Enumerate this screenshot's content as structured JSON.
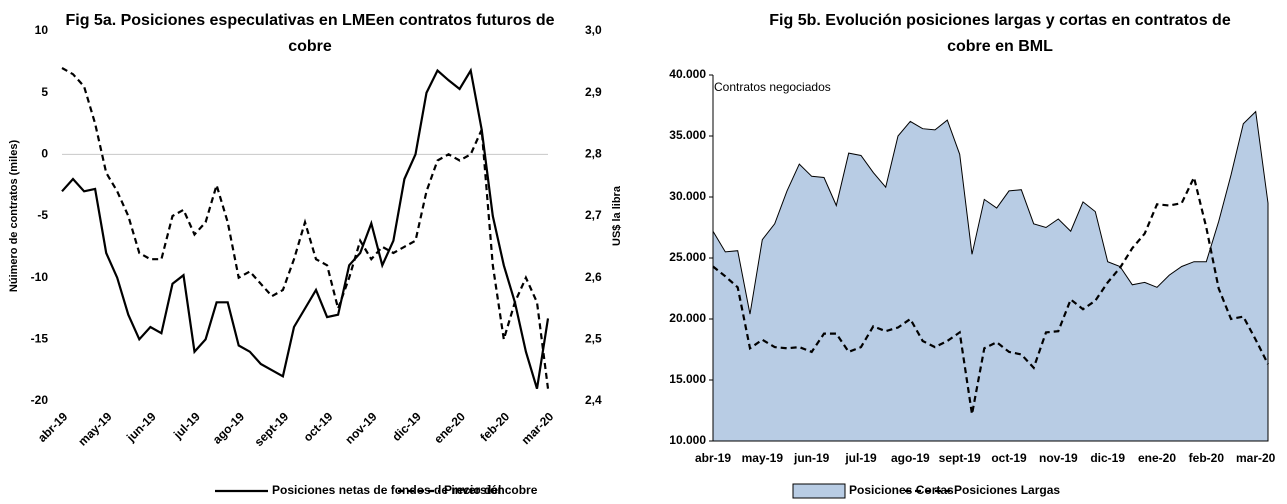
{
  "chart_data": [
    {
      "type": "line",
      "title": "Fig 5a. Posiciones especulativas en LMEen contratos futuros de cobre",
      "y_label": "Núimero de contratos (miles)",
      "y2_label": "US$ la libra",
      "categories": [
        "abr-19",
        null,
        null,
        null,
        "may-19",
        null,
        null,
        null,
        "jun-19",
        null,
        null,
        null,
        "jul-19",
        null,
        null,
        null,
        "ago-19",
        null,
        null,
        null,
        "sept-19",
        null,
        null,
        null,
        "oct-19",
        null,
        null,
        null,
        "nov-19",
        null,
        null,
        null,
        "dic-19",
        null,
        null,
        null,
        "ene-20",
        null,
        null,
        null,
        "feb-20",
        null,
        null,
        null,
        "mar-20"
      ],
      "ylim": [
        -20,
        10
      ],
      "yticks": [
        -20,
        -15,
        -10,
        -5,
        0,
        5,
        10
      ],
      "y2lim": [
        2.4,
        3.0
      ],
      "y2ticks": [
        {
          "value": 2.4,
          "label": "2,4"
        },
        {
          "value": 2.5,
          "label": "2,5"
        },
        {
          "value": 2.6,
          "label": "2,6"
        },
        {
          "value": 2.7,
          "label": "2,7"
        },
        {
          "value": 2.8,
          "label": "2,8"
        },
        {
          "value": 2.9,
          "label": "2,9"
        },
        {
          "value": 3.0,
          "label": "3,0"
        }
      ],
      "series": [
        {
          "name": "Posiciones netas de fondos de inversión",
          "color": "#000000",
          "dashed": false,
          "values": [
            -3,
            -2,
            -3,
            -2.8,
            -8,
            -10,
            -13,
            -15,
            -14,
            -14.5,
            -10.5,
            -9.8,
            -16,
            -15,
            -12,
            -12,
            -15.5,
            -16,
            -17,
            -17.5,
            -18,
            -14,
            -12.5,
            -11,
            -13.2,
            -13,
            -9,
            -8,
            -5.6,
            -9,
            -7,
            -2,
            0,
            5,
            6.8,
            6,
            5.3,
            6.8,
            2,
            -5,
            -9,
            -12,
            -16,
            -19,
            -13.3
          ]
        },
        {
          "name": "Precio del cobre",
          "color": "#000000",
          "dashed": true,
          "axis": "y2",
          "values": [
            2.94,
            2.93,
            2.91,
            2.85,
            2.77,
            2.74,
            2.7,
            2.64,
            2.63,
            2.63,
            2.7,
            2.71,
            2.67,
            2.69,
            2.75,
            2.69,
            2.6,
            2.61,
            2.59,
            2.57,
            2.58,
            2.63,
            2.69,
            2.63,
            2.62,
            2.55,
            2.6,
            2.66,
            2.63,
            2.65,
            2.64,
            2.65,
            2.66,
            2.74,
            2.79,
            2.8,
            2.79,
            2.8,
            2.84,
            2.62,
            2.5,
            2.56,
            2.6,
            2.56,
            2.42
          ]
        }
      ]
    },
    {
      "type": "area",
      "title": "Fig 5b. Evolución posiciones largas y cortas en contratos de cobre en BML",
      "annotation": "Contratos negociados",
      "categories": [
        "abr-19",
        null,
        null,
        null,
        "may-19",
        null,
        null,
        null,
        "jun-19",
        null,
        null,
        null,
        "jul-19",
        null,
        null,
        null,
        "ago-19",
        null,
        null,
        null,
        "sept-19",
        null,
        null,
        null,
        "oct-19",
        null,
        null,
        null,
        "nov-19",
        null,
        null,
        null,
        "dic-19",
        null,
        null,
        null,
        "ene-20",
        null,
        null,
        null,
        "feb-20",
        null,
        null,
        null,
        "mar-20",
        null
      ],
      "ylim": [
        10000,
        40000
      ],
      "yticks": [
        {
          "value": 10000,
          "label": "10.000"
        },
        {
          "value": 15000,
          "label": "15.000"
        },
        {
          "value": 20000,
          "label": "20.000"
        },
        {
          "value": 25000,
          "label": "25.000"
        },
        {
          "value": 30000,
          "label": "30.000"
        },
        {
          "value": 35000,
          "label": "35.000"
        },
        {
          "value": 40000,
          "label": "40.000"
        }
      ],
      "series": [
        {
          "name": "Posiciones Cortas",
          "color": "#b8cce4",
          "mark": "area",
          "values": [
            27200,
            25500,
            25600,
            20400,
            26500,
            27800,
            30500,
            32700,
            31700,
            31600,
            29300,
            33600,
            33400,
            32000,
            30800,
            35000,
            36200,
            35600,
            35500,
            36300,
            33500,
            25300,
            29800,
            29100,
            30500,
            30600,
            27800,
            27500,
            28200,
            27200,
            29600,
            28800,
            24700,
            24300,
            22800,
            23000,
            22600,
            23600,
            24300,
            24700,
            24700,
            28000,
            31800,
            36000,
            37000,
            29500
          ]
        },
        {
          "name": "Posiciones Largas",
          "color": "#000000",
          "mark": "line",
          "dashed": true,
          "values": [
            24300,
            23500,
            22600,
            17600,
            18300,
            17700,
            17600,
            17700,
            17300,
            18800,
            18800,
            17300,
            17700,
            19400,
            19000,
            19300,
            20000,
            18200,
            17700,
            18200,
            18900,
            12200,
            17600,
            18100,
            17300,
            17100,
            16000,
            18900,
            19000,
            21600,
            20800,
            21500,
            23000,
            24200,
            25800,
            27000,
            29400,
            29300,
            29500,
            31600,
            27500,
            22500,
            20000,
            20200,
            18300,
            16300
          ]
        }
      ]
    }
  ]
}
